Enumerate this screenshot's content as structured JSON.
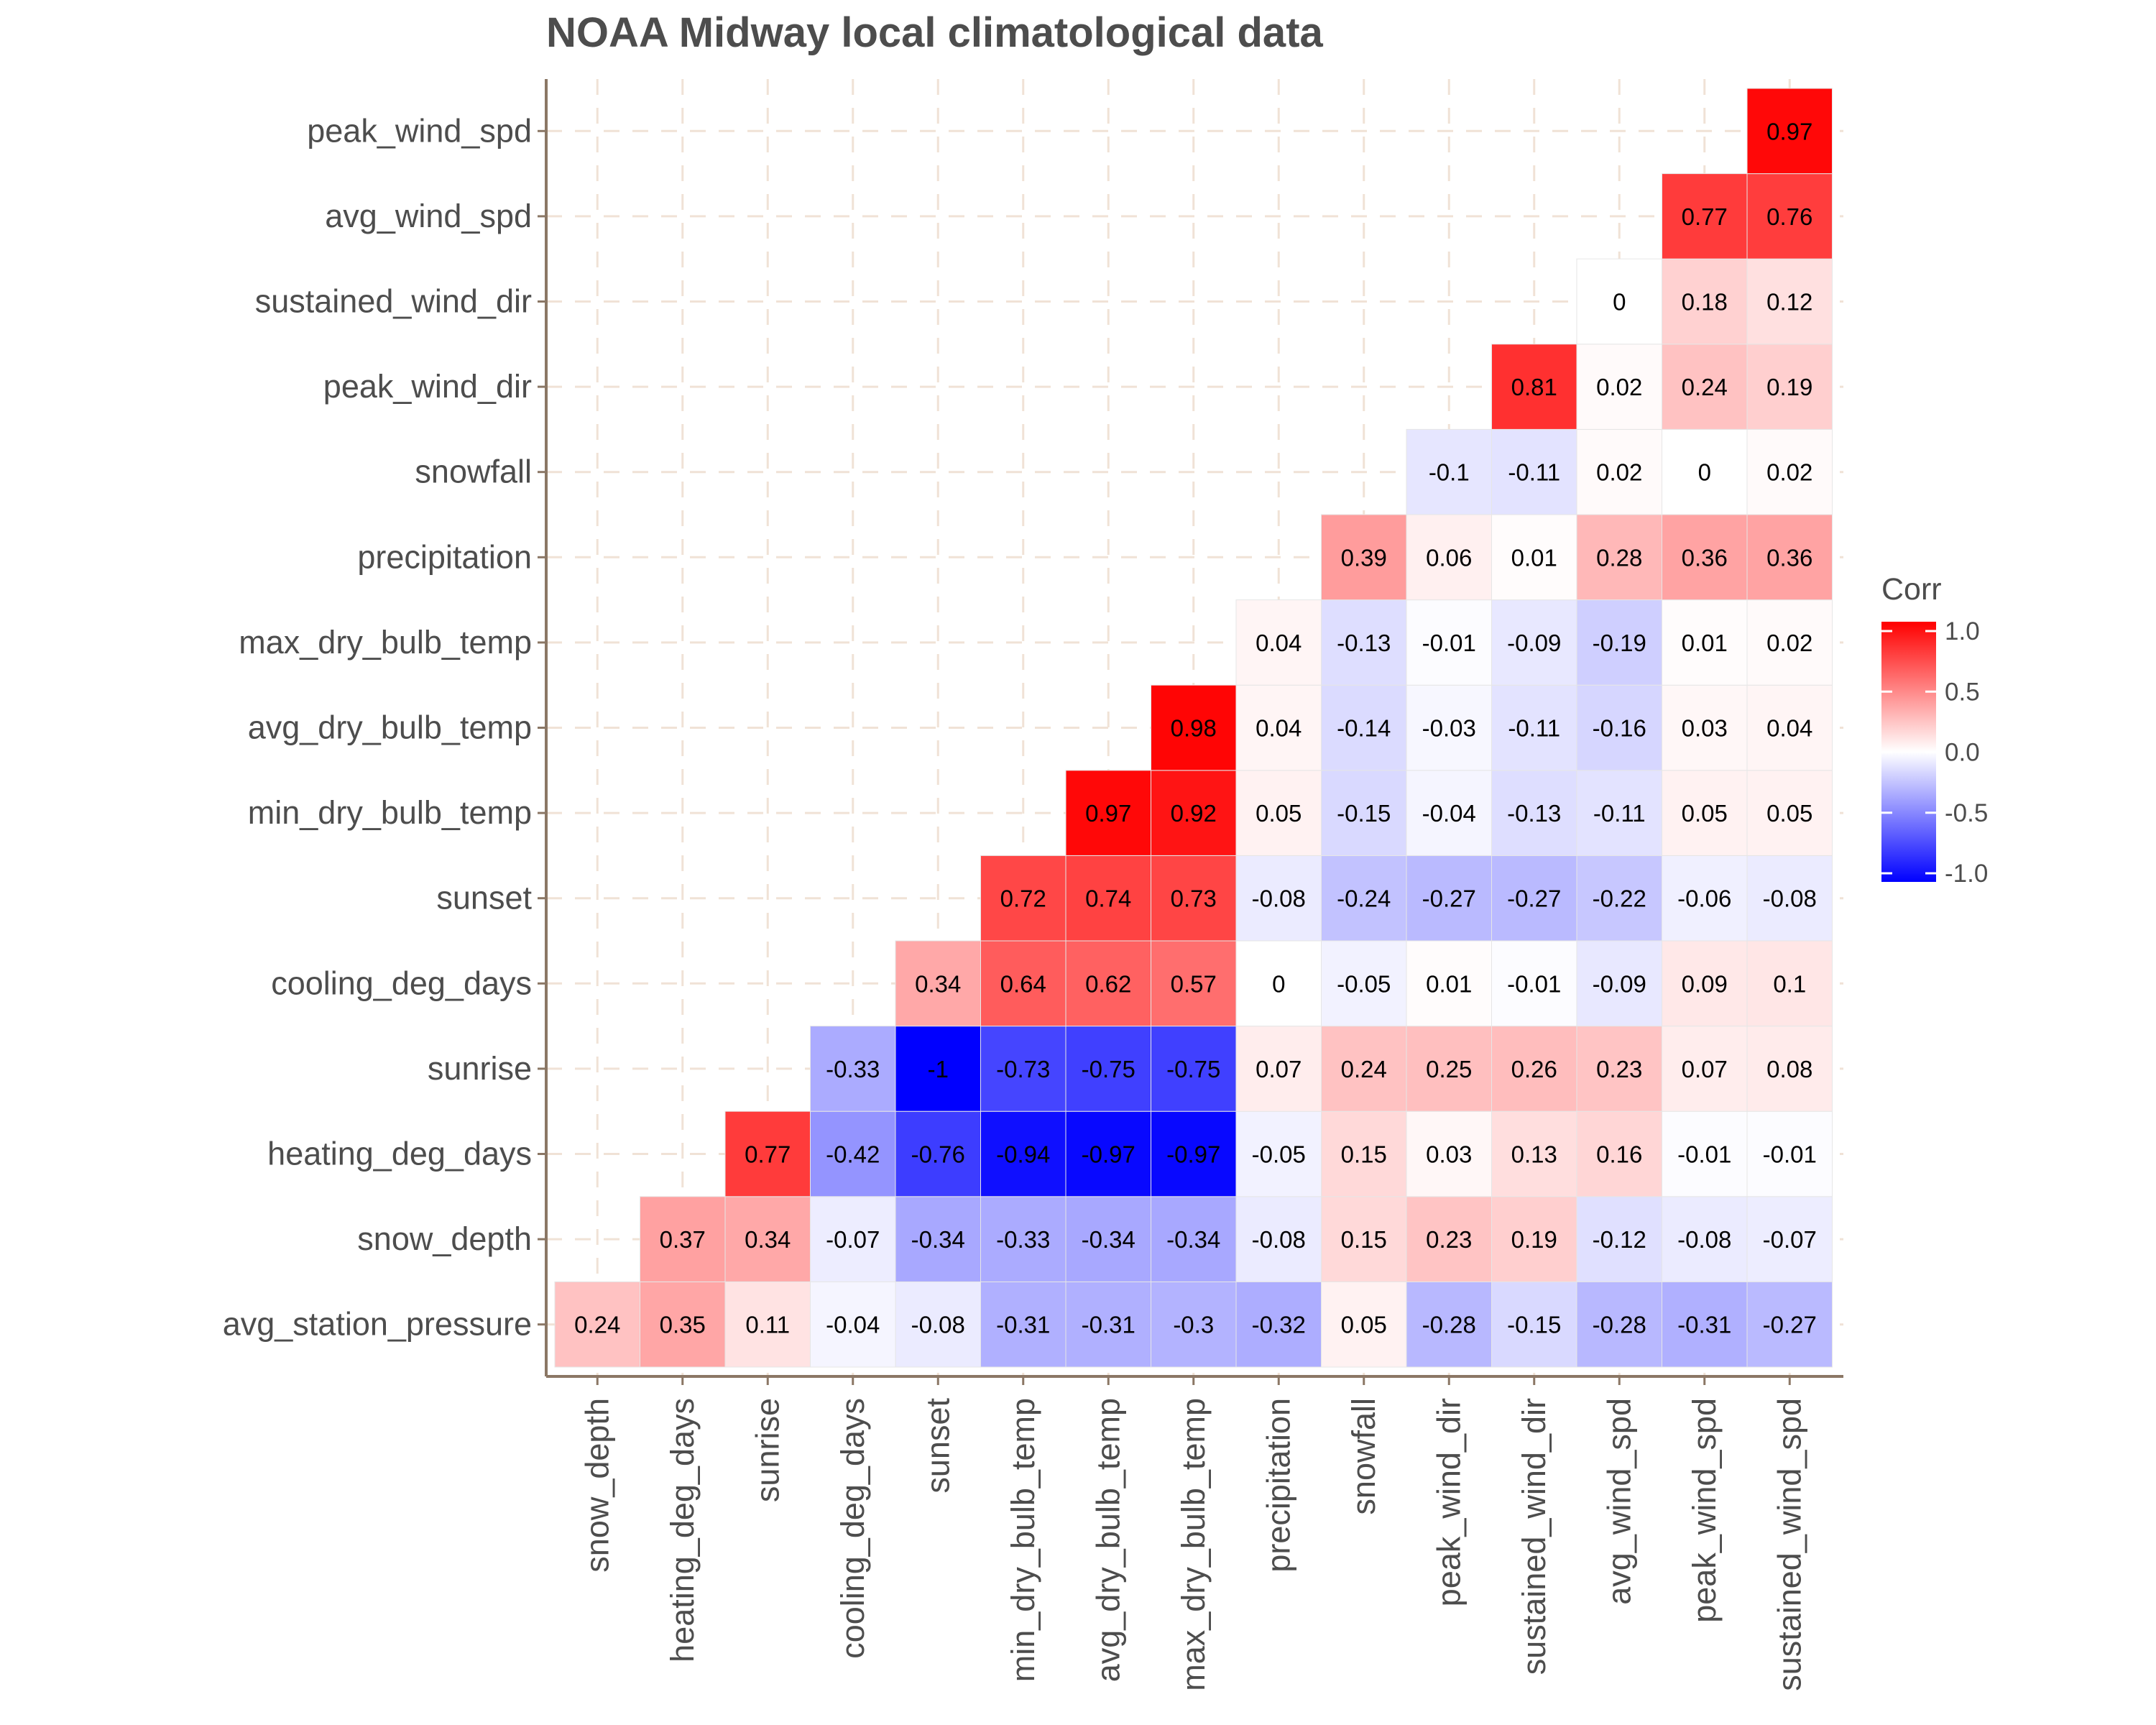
{
  "chart_data": {
    "type": "heatmap",
    "title": "NOAA Midway local climatological data",
    "xlabel": "",
    "ylabel": "",
    "x_categories": [
      "snow_depth",
      "heating_deg_days",
      "sunrise",
      "cooling_deg_days",
      "sunset",
      "min_dry_bulb_temp",
      "avg_dry_bulb_temp",
      "max_dry_bulb_temp",
      "precipitation",
      "snowfall",
      "peak_wind_dir",
      "sustained_wind_dir",
      "avg_wind_spd",
      "peak_wind_spd",
      "sustained_wind_spd"
    ],
    "y_categories": [
      "avg_station_pressure",
      "snow_depth",
      "heating_deg_days",
      "sunrise",
      "cooling_deg_days",
      "sunset",
      "min_dry_bulb_temp",
      "avg_dry_bulb_temp",
      "max_dry_bulb_temp",
      "precipitation",
      "snowfall",
      "peak_wind_dir",
      "sustained_wind_dir",
      "avg_wind_spd",
      "peak_wind_spd"
    ],
    "values": [
      [
        0.24,
        0.35,
        0.11,
        -0.04,
        -0.08,
        -0.31,
        -0.31,
        -0.3,
        -0.32,
        0.05,
        -0.28,
        -0.15,
        -0.28,
        -0.31,
        -0.27
      ],
      [
        null,
        0.37,
        0.34,
        -0.07,
        -0.34,
        -0.33,
        -0.34,
        -0.34,
        -0.08,
        0.15,
        0.23,
        0.19,
        -0.12,
        -0.08,
        -0.07
      ],
      [
        null,
        null,
        0.77,
        -0.42,
        -0.76,
        -0.94,
        -0.97,
        -0.97,
        -0.05,
        0.15,
        0.03,
        0.13,
        0.16,
        -0.01,
        -0.01
      ],
      [
        null,
        null,
        null,
        -0.33,
        -1,
        -0.73,
        -0.75,
        -0.75,
        0.07,
        0.24,
        0.25,
        0.26,
        0.23,
        0.07,
        0.08
      ],
      [
        null,
        null,
        null,
        null,
        0.34,
        0.64,
        0.62,
        0.57,
        0,
        -0.05,
        0.01,
        -0.01,
        -0.09,
        0.09,
        0.1
      ],
      [
        null,
        null,
        null,
        null,
        null,
        0.72,
        0.74,
        0.73,
        -0.08,
        -0.24,
        -0.27,
        -0.27,
        -0.22,
        -0.06,
        -0.08
      ],
      [
        null,
        null,
        null,
        null,
        null,
        null,
        0.97,
        0.92,
        0.05,
        -0.15,
        -0.04,
        -0.13,
        -0.11,
        0.05,
        0.05
      ],
      [
        null,
        null,
        null,
        null,
        null,
        null,
        null,
        0.98,
        0.04,
        -0.14,
        -0.03,
        -0.11,
        -0.16,
        0.03,
        0.04
      ],
      [
        null,
        null,
        null,
        null,
        null,
        null,
        null,
        null,
        0.04,
        -0.13,
        -0.01,
        -0.09,
        -0.19,
        0.01,
        0.02
      ],
      [
        null,
        null,
        null,
        null,
        null,
        null,
        null,
        null,
        null,
        0.39,
        0.06,
        0.01,
        0.28,
        0.36,
        0.36
      ],
      [
        null,
        null,
        null,
        null,
        null,
        null,
        null,
        null,
        null,
        null,
        -0.1,
        -0.11,
        0.02,
        0,
        0.02
      ],
      [
        null,
        null,
        null,
        null,
        null,
        null,
        null,
        null,
        null,
        null,
        null,
        0.81,
        0.02,
        0.24,
        0.19
      ],
      [
        null,
        null,
        null,
        null,
        null,
        null,
        null,
        null,
        null,
        null,
        null,
        null,
        0,
        0.18,
        0.12
      ],
      [
        null,
        null,
        null,
        null,
        null,
        null,
        null,
        null,
        null,
        null,
        null,
        null,
        null,
        0.77,
        0.76
      ],
      [
        null,
        null,
        null,
        null,
        null,
        null,
        null,
        null,
        null,
        null,
        null,
        null,
        null,
        null,
        0.97
      ]
    ],
    "value_range": [
      -1,
      1
    ],
    "grid": true,
    "legend": {
      "title": "Corr",
      "placement": "right",
      "ticks": [
        1.0,
        0.5,
        0.0,
        -0.5,
        -1.0
      ],
      "tick_labels": [
        "1.0",
        "0.5",
        "0.0",
        "-0.5",
        "-1.0"
      ]
    },
    "colors": {
      "low": "#0000ff",
      "mid": "#ffffff",
      "high": "#ff0000",
      "grid_line": "#f0e2d6",
      "axis_line": "#8b7765",
      "tile_border": "#e6e6e6"
    }
  }
}
